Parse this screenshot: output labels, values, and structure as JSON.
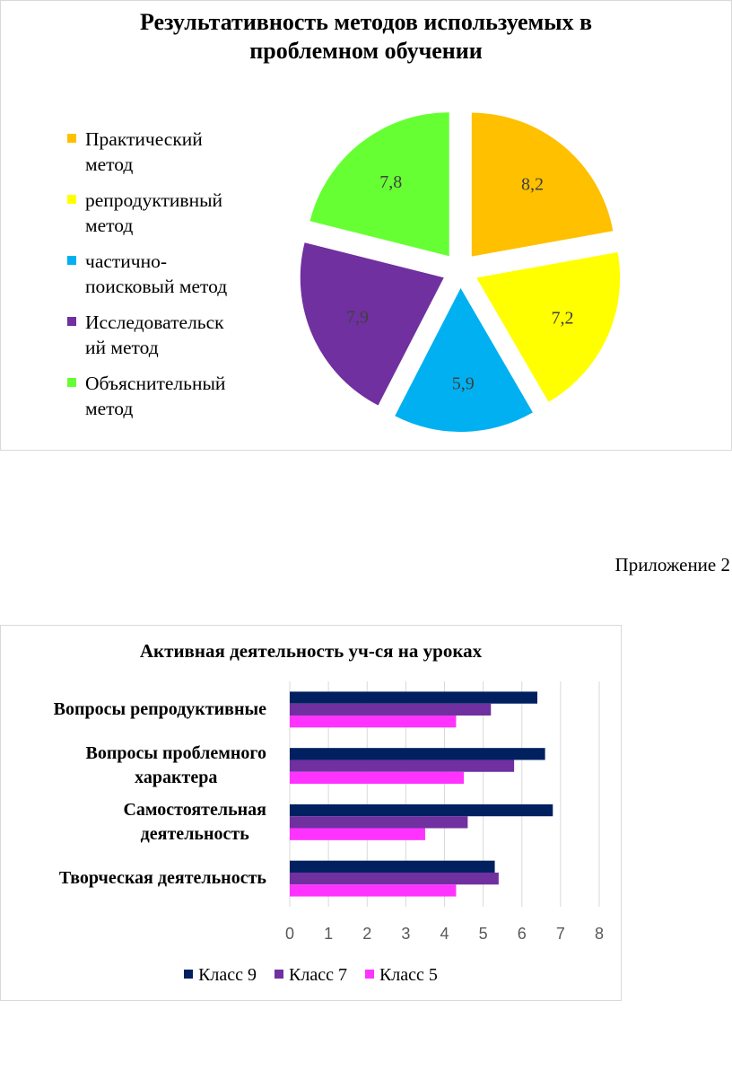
{
  "appendix_label": "Приложение 2",
  "chart_data": [
    {
      "type": "pie",
      "title": "Результативность методов используемых в проблемном обучении",
      "legend_position": "left",
      "exploded": true,
      "slices": [
        {
          "label": "Практический метод",
          "value": 8.2,
          "value_label": "8,2",
          "color": "#FFC000"
        },
        {
          "label": "репродуктивный метод",
          "value": 7.2,
          "value_label": "7,2",
          "color": "#FFFF00"
        },
        {
          "label": "частично-поисковый метод",
          "value": 5.9,
          "value_label": "5,9",
          "color": "#00B0F0"
        },
        {
          "label": "Исследовательский метод",
          "value": 7.9,
          "value_label": "7,9",
          "color": "#7030A0"
        },
        {
          "label": "Объяснительный метод",
          "value": 7.8,
          "value_label": "7,8",
          "color": "#66FF33"
        }
      ],
      "legend_lines": [
        [
          "Практический",
          "метод"
        ],
        [
          "репродуктивный",
          "метод"
        ],
        [
          "частично-",
          "поисковый метод"
        ],
        [
          "Исследовательск",
          "ий метод"
        ],
        [
          "Объяснительный",
          "метод"
        ]
      ]
    },
    {
      "type": "bar",
      "orientation": "horizontal",
      "title": "Активная деятельность уч-ся на уроках",
      "categories": [
        "Вопросы репродуктивные",
        "Вопросы проблемного характера",
        "Самостоятельная деятельность",
        "Творческая деятельность"
      ],
      "category_lines": [
        [
          "Вопросы репродуктивные"
        ],
        [
          "Вопросы проблемного",
          "характера"
        ],
        [
          "Самостоятельная",
          "деятельность"
        ],
        [
          "Творческая деятельность"
        ]
      ],
      "series": [
        {
          "name": "Класс 9",
          "color": "#002060",
          "values": [
            6.4,
            6.6,
            6.8,
            5.3
          ]
        },
        {
          "name": "Класс 7",
          "color": "#7030A0",
          "values": [
            5.2,
            5.8,
            4.6,
            5.4
          ]
        },
        {
          "name": "Класс 5",
          "color": "#FF33FF",
          "values": [
            4.3,
            4.5,
            3.5,
            4.3
          ]
        }
      ],
      "xlim": [
        0,
        8
      ],
      "xticks": [
        "0",
        "1",
        "2",
        "3",
        "4",
        "5",
        "6",
        "7",
        "8"
      ],
      "grid": true,
      "legend_position": "bottom"
    }
  ]
}
